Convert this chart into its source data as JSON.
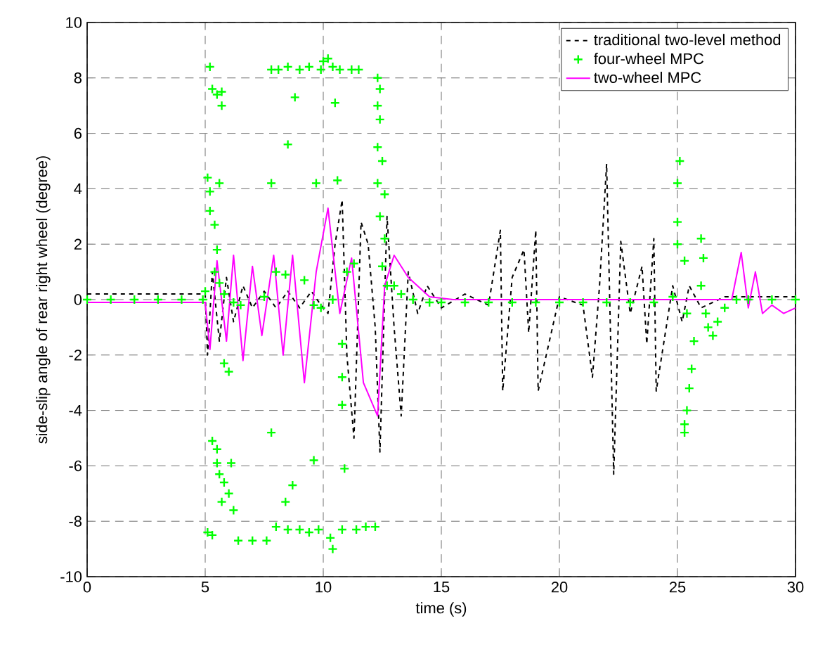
{
  "chart_data": {
    "type": "line",
    "xlabel": "time (s)",
    "ylabel": "side-slip angle of rear right wheel (degree)",
    "xlim": [
      0,
      30
    ],
    "ylim": [
      -10,
      10
    ],
    "xticks": [
      0,
      5,
      10,
      15,
      20,
      25,
      30
    ],
    "yticks": [
      -10,
      -8,
      -6,
      -4,
      -2,
      0,
      2,
      4,
      6,
      8,
      10
    ],
    "grid": true,
    "legend": "top right",
    "series": [
      {
        "name": "traditional two-level method",
        "color": "#000000",
        "line_style": "dashed",
        "marker": "none",
        "x": [
          0,
          5,
          5.1,
          5.3,
          5.6,
          5.9,
          6.2,
          6.6,
          7.0,
          7.5,
          8.0,
          8.5,
          9.0,
          9.5,
          9.9,
          10.2,
          10.5,
          10.8,
          11.0,
          11.3,
          11.6,
          11.9,
          12.2,
          12.4,
          12.7,
          13.0,
          13.3,
          13.6,
          14.0,
          14.4,
          15.0,
          16.0,
          17.0,
          17.5,
          17.6,
          18.0,
          18.5,
          18.7,
          19.0,
          19.1,
          20.0,
          21.0,
          21.4,
          21.7,
          22.0,
          22.3,
          22.6,
          23.0,
          23.5,
          23.7,
          24.0,
          24.1,
          24.8,
          25.2,
          25.5,
          26.0,
          27.0,
          30.0
        ],
        "values": [
          0.2,
          0.2,
          -2.0,
          1.0,
          -1.5,
          0.8,
          -0.8,
          0.5,
          -0.3,
          0.3,
          -0.3,
          0.3,
          -0.3,
          0.3,
          -0.2,
          -0.5,
          2.0,
          3.6,
          -2.0,
          -5.0,
          2.8,
          2.0,
          -1.0,
          -5.5,
          3.0,
          -1.0,
          -4.2,
          1.0,
          -0.5,
          0.5,
          -0.3,
          0.2,
          -0.2,
          2.5,
          -3.3,
          0.8,
          1.8,
          -1.2,
          2.5,
          -3.3,
          0.1,
          -0.2,
          -2.8,
          0.5,
          4.9,
          -6.3,
          2.1,
          -0.5,
          1.2,
          -1.6,
          2.2,
          -3.3,
          0.5,
          -0.8,
          0.5,
          -0.3,
          0.1,
          0.1
        ]
      },
      {
        "name": "four-wheel MPC",
        "color": "#00ff00",
        "type": "scatter",
        "marker": "cross",
        "x": [
          0,
          1,
          2,
          3,
          4,
          4.9,
          5.2,
          5.3,
          5.5,
          5.7,
          5.7,
          5.1,
          5.2,
          5.6,
          5.2,
          5.4,
          5.5,
          5.4,
          5.6,
          5.8,
          6.2,
          5.0,
          6.5,
          7.5,
          8.0,
          8.4,
          9.2,
          9.6,
          9.9,
          10.4,
          11.0,
          11.3,
          7.8,
          8.5,
          8.8,
          9.7,
          10.5,
          10.6,
          7.8,
          8.1,
          8.5,
          9.0,
          9.4,
          9.9,
          10.2,
          10.4,
          10.7,
          11.2,
          11.5,
          10.0,
          12.3,
          12.4,
          12.3,
          12.4,
          12.3,
          12.5,
          12.3,
          12.6,
          12.4,
          12.6,
          12.5,
          12.7,
          10.8,
          10.8,
          10.8,
          10.9,
          5.3,
          5.5,
          5.5,
          5.6,
          5.8,
          5.7,
          6.0,
          6.2,
          6.1,
          5.1,
          5.3,
          6.4,
          7.0,
          7.6,
          8.0,
          8.4,
          8.5,
          9.0,
          9.4,
          9.8,
          10.3,
          10.4,
          10.8,
          11.4,
          11.8,
          12.2,
          8.7,
          9.6,
          7.8,
          5.8,
          6.0,
          13.0,
          13.3,
          13.8,
          14.5,
          15,
          16,
          17,
          18,
          19,
          20,
          21,
          22,
          23,
          24,
          24.8,
          25.1,
          25.0,
          25.0,
          25.0,
          25.3,
          25.4,
          25.7,
          25.6,
          25.5,
          25.4,
          25.3,
          25.3,
          26.0,
          26.1,
          26.0,
          26.2,
          26.3,
          26.5,
          26.7,
          27.0,
          27.5,
          28,
          29,
          30
        ],
        "values": [
          0,
          0,
          0,
          0,
          0,
          0,
          8.4,
          7.6,
          7.4,
          7.5,
          7.0,
          4.4,
          3.9,
          4.2,
          3.2,
          2.7,
          1.8,
          1.0,
          0.6,
          0.2,
          -0.1,
          0.3,
          -0.2,
          0.1,
          1.0,
          0.9,
          0.7,
          -0.2,
          -0.3,
          0.0,
          1.0,
          1.3,
          4.2,
          5.6,
          7.3,
          4.2,
          7.1,
          4.3,
          8.3,
          8.3,
          8.4,
          8.3,
          8.4,
          8.3,
          8.7,
          8.4,
          8.3,
          8.3,
          8.3,
          8.6,
          8.0,
          7.6,
          7.0,
          6.5,
          5.5,
          5.0,
          4.2,
          3.8,
          3.0,
          2.2,
          1.2,
          0.5,
          -1.6,
          -2.8,
          -3.8,
          -6.1,
          -5.1,
          -5.4,
          -5.9,
          -6.3,
          -6.6,
          -7.3,
          -7.0,
          -7.6,
          -5.9,
          -8.4,
          -8.5,
          -8.7,
          -8.7,
          -8.7,
          -8.2,
          -7.3,
          -8.3,
          -8.3,
          -8.4,
          -8.3,
          -8.6,
          -9.0,
          -8.3,
          -8.3,
          -8.2,
          -8.2,
          -6.7,
          -5.8,
          -4.8,
          -2.3,
          -2.6,
          0.5,
          0.2,
          0,
          -0.1,
          -0.1,
          -0.1,
          -0.1,
          -0.1,
          -0.1,
          -0.1,
          -0.1,
          -0.1,
          -0.1,
          -0.1,
          0.1,
          5.0,
          4.2,
          2.8,
          2.0,
          1.4,
          -0.5,
          -1.5,
          -2.5,
          -3.2,
          -4.0,
          -4.8,
          -4.5,
          2.2,
          1.5,
          0.5,
          -0.5,
          -1.0,
          -1.3,
          -0.8,
          -0.3,
          0,
          0,
          0,
          0
        ]
      },
      {
        "name": "two-wheel MPC",
        "color": "#ff00ff",
        "line_style": "solid",
        "marker": "none",
        "x": [
          0,
          5,
          5.2,
          5.5,
          5.9,
          6.2,
          6.6,
          7.0,
          7.4,
          7.9,
          8.3,
          8.7,
          9.2,
          9.7,
          10.2,
          10.7,
          11.2,
          11.7,
          12.3,
          12.6,
          13.0,
          13.6,
          14.5,
          15.5,
          20,
          25,
          27.3,
          27.7,
          28.0,
          28.3,
          28.6,
          29.0,
          29.5,
          30
        ],
        "values": [
          -0.1,
          -0.1,
          -1.8,
          1.4,
          -1.5,
          1.6,
          -2.2,
          1.2,
          -1.3,
          1.6,
          -2.0,
          1.6,
          -3.0,
          1.0,
          3.3,
          -0.5,
          1.5,
          -3.0,
          -4.2,
          0.5,
          1.6,
          0.8,
          0.1,
          0,
          0,
          0,
          0,
          1.7,
          -0.3,
          1.0,
          -0.5,
          -0.2,
          -0.5,
          -0.3
        ]
      }
    ]
  }
}
